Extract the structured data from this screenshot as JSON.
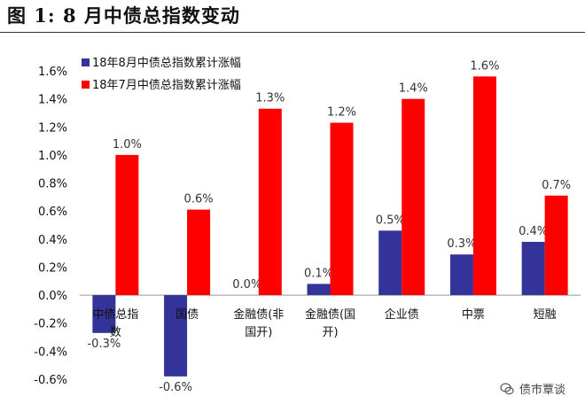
{
  "figure_title": "图 1:  8 月中债总指数变动",
  "watermark_text": "债市覃谈",
  "colors": {
    "series_aug": "#333399",
    "series_jul": "#FF0000",
    "axis": "#999999"
  },
  "chart_data": {
    "type": "bar",
    "title": "",
    "xlabel": "",
    "ylabel": "",
    "ylim": [
      -0.006,
      0.016
    ],
    "yticks": [
      -0.006,
      -0.004,
      -0.002,
      0,
      0.002,
      0.004,
      0.006,
      0.008,
      0.01,
      0.012,
      0.014,
      0.016
    ],
    "ytick_labels": [
      "-0.6%",
      "-0.4%",
      "-0.2%",
      "0.0%",
      "0.2%",
      "0.4%",
      "0.6%",
      "0.8%",
      "1.0%",
      "1.2%",
      "1.4%",
      "1.6%"
    ],
    "categories": [
      [
        "中债总指",
        "数"
      ],
      [
        "国债"
      ],
      [
        "金融债(非",
        "国开)"
      ],
      [
        "金融债(国",
        "开)"
      ],
      [
        "企业债"
      ],
      [
        "中票"
      ],
      [
        "短融"
      ]
    ],
    "legend_position": "top-left",
    "grid": false,
    "series": [
      {
        "name": "18年8月中债总指数累计涨幅",
        "values": [
          -0.0027,
          -0.0058,
          0.0,
          0.0008,
          0.0046,
          0.0029,
          0.0038
        ],
        "labels": [
          "-0.3%",
          "-0.6%",
          "0.0%",
          "0.1%",
          "0.5%",
          "0.3%",
          "0.4%"
        ]
      },
      {
        "name": "18年7月中债总指数累计涨幅",
        "values": [
          0.01,
          0.0061,
          0.0133,
          0.0123,
          0.014,
          0.0156,
          0.0071
        ],
        "labels": [
          "1.0%",
          "0.6%",
          "1.3%",
          "1.2%",
          "1.4%",
          "1.6%",
          "0.7%"
        ]
      }
    ]
  }
}
